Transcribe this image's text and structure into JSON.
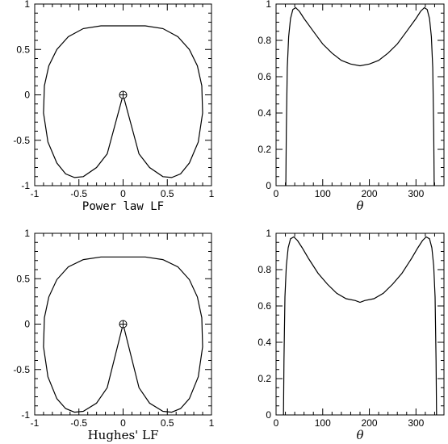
{
  "chart_data": [
    {
      "type": "line",
      "kind": "polar-shape",
      "xlabel": "Power law LF",
      "ylabel": "",
      "xlim": [
        -1,
        1
      ],
      "ylim": [
        -1,
        1
      ],
      "xticks": [
        "-1",
        "-0.5",
        "0",
        "0.5",
        "1"
      ],
      "yticks": [
        "-1",
        "-0.5",
        "0",
        "0.5",
        "1"
      ],
      "marker": {
        "symbol": "circled-plus",
        "x": 0,
        "y": 0
      },
      "series": [
        {
          "x": [
            0,
            0.18,
            0.3,
            0.45,
            0.55,
            0.65,
            0.75,
            0.85,
            0.9,
            0.89,
            0.84,
            0.75,
            0.62,
            0.45,
            0.25,
            0,
            -0.25,
            -0.45,
            -0.62,
            -0.75,
            -0.84,
            -0.89,
            -0.9,
            -0.85,
            -0.75,
            -0.65,
            -0.55,
            -0.45,
            -0.3,
            -0.18,
            0
          ],
          "y": [
            0,
            -0.65,
            -0.8,
            -0.9,
            -0.91,
            -0.87,
            -0.75,
            -0.52,
            -0.2,
            0.1,
            0.32,
            0.5,
            0.64,
            0.73,
            0.76,
            0.76,
            0.76,
            0.73,
            0.64,
            0.5,
            0.32,
            0.1,
            -0.2,
            -0.52,
            -0.75,
            -0.87,
            -0.91,
            -0.9,
            -0.8,
            -0.65,
            0
          ]
        }
      ]
    },
    {
      "type": "line",
      "xlabel": "θ",
      "ylabel": "",
      "xlim": [
        0,
        360
      ],
      "ylim": [
        0,
        1
      ],
      "xticks": [
        "0",
        "100",
        "200",
        "300"
      ],
      "yticks": [
        "0",
        "0.2",
        "0.4",
        "0.6",
        "0.8",
        "1"
      ],
      "series": [
        {
          "x": [
            21,
            22,
            24,
            27,
            31,
            36,
            42,
            50,
            60,
            80,
            100,
            120,
            140,
            160,
            180,
            200,
            220,
            240,
            260,
            280,
            300,
            310,
            318,
            324,
            329,
            333,
            336,
            338,
            339
          ],
          "y": [
            0,
            0.3,
            0.65,
            0.82,
            0.92,
            0.97,
            0.98,
            0.96,
            0.92,
            0.85,
            0.78,
            0.73,
            0.69,
            0.67,
            0.66,
            0.67,
            0.69,
            0.73,
            0.78,
            0.85,
            0.92,
            0.96,
            0.98,
            0.97,
            0.92,
            0.82,
            0.65,
            0.3,
            0
          ]
        }
      ]
    },
    {
      "type": "line",
      "kind": "polar-shape",
      "xlabel": "Hughes' LF",
      "ylabel": "",
      "xlim": [
        -1,
        1
      ],
      "ylim": [
        -1,
        1
      ],
      "xticks": [
        "-1",
        "-0.5",
        "0",
        "0.5",
        "1"
      ],
      "yticks": [
        "-1",
        "-0.5",
        "0",
        "0.5",
        "1"
      ],
      "marker": {
        "symbol": "circled-plus",
        "x": 0,
        "y": 0
      },
      "series": [
        {
          "x": [
            0,
            0.18,
            0.3,
            0.45,
            0.55,
            0.65,
            0.75,
            0.85,
            0.9,
            0.89,
            0.84,
            0.75,
            0.62,
            0.45,
            0.25,
            0,
            -0.25,
            -0.45,
            -0.62,
            -0.75,
            -0.84,
            -0.89,
            -0.9,
            -0.85,
            -0.75,
            -0.65,
            -0.55,
            -0.45,
            -0.3,
            -0.18,
            0
          ],
          "y": [
            0,
            -0.7,
            -0.87,
            -0.96,
            -0.97,
            -0.93,
            -0.82,
            -0.58,
            -0.25,
            0.07,
            0.3,
            0.49,
            0.63,
            0.71,
            0.74,
            0.74,
            0.74,
            0.71,
            0.63,
            0.49,
            0.3,
            0.07,
            -0.25,
            -0.58,
            -0.82,
            -0.93,
            -0.97,
            -0.96,
            -0.87,
            -0.7,
            0
          ]
        }
      ]
    },
    {
      "type": "line",
      "xlabel": "θ",
      "ylabel": "",
      "xlim": [
        0,
        360
      ],
      "ylim": [
        0,
        1
      ],
      "xticks": [
        "0",
        "100",
        "200",
        "300"
      ],
      "yticks": [
        "0",
        "0.2",
        "0.4",
        "0.6",
        "0.8",
        "1"
      ],
      "series": [
        {
          "x": [
            16,
            17,
            19,
            22,
            26,
            31,
            38,
            46,
            56,
            70,
            90,
            110,
            130,
            150,
            170,
            180,
            190,
            210,
            230,
            250,
            270,
            290,
            304,
            314,
            322,
            329,
            334,
            338,
            341,
            343,
            344
          ],
          "y": [
            0,
            0.3,
            0.65,
            0.82,
            0.92,
            0.97,
            0.98,
            0.96,
            0.92,
            0.86,
            0.78,
            0.72,
            0.67,
            0.64,
            0.63,
            0.62,
            0.63,
            0.64,
            0.67,
            0.72,
            0.78,
            0.86,
            0.92,
            0.96,
            0.98,
            0.97,
            0.92,
            0.82,
            0.65,
            0.3,
            0
          ]
        }
      ]
    }
  ]
}
